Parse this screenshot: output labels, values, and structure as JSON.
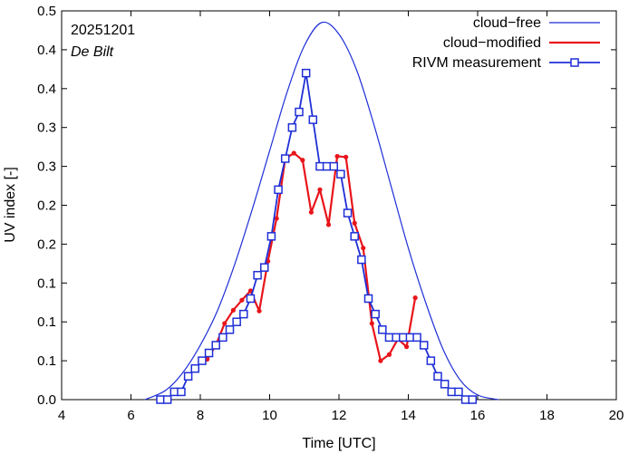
{
  "chart_data": {
    "type": "line",
    "title": "",
    "xlabel": "Time  [UTC]",
    "ylabel": "UV index  [-]",
    "xlim": [
      4,
      20
    ],
    "ylim": [
      0,
      0.5
    ],
    "x_ticks": [
      4,
      6,
      8,
      10,
      12,
      14,
      16,
      18,
      20
    ],
    "y_ticks": [
      0,
      0.05,
      0.1,
      0.15,
      0.2,
      0.25,
      0.3,
      0.35,
      0.4,
      0.45,
      0.5
    ],
    "y_tick_labels": [
      "0.0",
      "0.1",
      "0.1",
      "0.1",
      "0.2",
      "0.2",
      "0.3",
      "0.3",
      "0.4",
      "0.4",
      "0.5"
    ],
    "annotations": {
      "date": "20251201",
      "location": "De Bilt"
    },
    "legend_position": "top-right",
    "colors": {
      "cloud_free": "#1f2fd6",
      "cloud_modified": "#e8141a",
      "rivm": "#1f2fd6"
    },
    "series": [
      {
        "name": "cloud−free",
        "style": "line",
        "x": [
          6.4,
          7.0,
          7.5,
          8.0,
          8.5,
          9.0,
          9.5,
          10.0,
          10.5,
          11.0,
          11.5,
          12.0,
          12.5,
          13.0,
          13.5,
          14.0,
          14.5,
          15.0,
          15.5,
          16.0,
          16.6
        ],
        "values": [
          0.0,
          0.012,
          0.035,
          0.07,
          0.115,
          0.175,
          0.245,
          0.32,
          0.395,
          0.455,
          0.485,
          0.47,
          0.425,
          0.355,
          0.275,
          0.195,
          0.125,
          0.065,
          0.025,
          0.006,
          0.0
        ]
      },
      {
        "name": "cloud−modified",
        "style": "line-dots",
        "x": [
          8.2,
          8.45,
          8.7,
          8.95,
          9.2,
          9.45,
          9.7,
          9.95,
          10.2,
          10.45,
          10.7,
          10.95,
          11.2,
          11.45,
          11.7,
          11.95,
          12.2,
          12.45,
          12.7,
          12.95,
          13.2,
          13.45,
          13.7,
          13.95,
          14.2
        ],
        "values": [
          0.052,
          0.07,
          0.098,
          0.115,
          0.128,
          0.14,
          0.114,
          0.178,
          0.233,
          0.31,
          0.317,
          0.308,
          0.241,
          0.27,
          0.225,
          0.313,
          0.312,
          0.227,
          0.195,
          0.098,
          0.05,
          0.058,
          0.078,
          0.068,
          0.131
        ]
      },
      {
        "name": "RIVM measurement",
        "style": "line-squares",
        "x": [
          6.85,
          7.05,
          7.25,
          7.45,
          7.65,
          7.85,
          8.05,
          8.25,
          8.45,
          8.65,
          8.85,
          9.05,
          9.25,
          9.45,
          9.65,
          9.85,
          10.05,
          10.25,
          10.45,
          10.65,
          10.85,
          11.05,
          11.25,
          11.45,
          11.65,
          11.85,
          12.05,
          12.25,
          12.45,
          12.65,
          12.85,
          13.05,
          13.25,
          13.45,
          13.65,
          13.85,
          14.05,
          14.25,
          14.45,
          14.65,
          14.85,
          15.05,
          15.25,
          15.45,
          15.65,
          15.85
        ],
        "values": [
          0.0,
          0.0,
          0.01,
          0.01,
          0.03,
          0.04,
          0.05,
          0.06,
          0.07,
          0.08,
          0.09,
          0.1,
          0.11,
          0.13,
          0.16,
          0.17,
          0.21,
          0.27,
          0.31,
          0.35,
          0.37,
          0.42,
          0.36,
          0.3,
          0.3,
          0.3,
          0.29,
          0.24,
          0.21,
          0.18,
          0.13,
          0.11,
          0.09,
          0.08,
          0.08,
          0.08,
          0.08,
          0.08,
          0.07,
          0.05,
          0.03,
          0.02,
          0.01,
          0.01,
          0.0,
          0.0
        ]
      }
    ]
  }
}
